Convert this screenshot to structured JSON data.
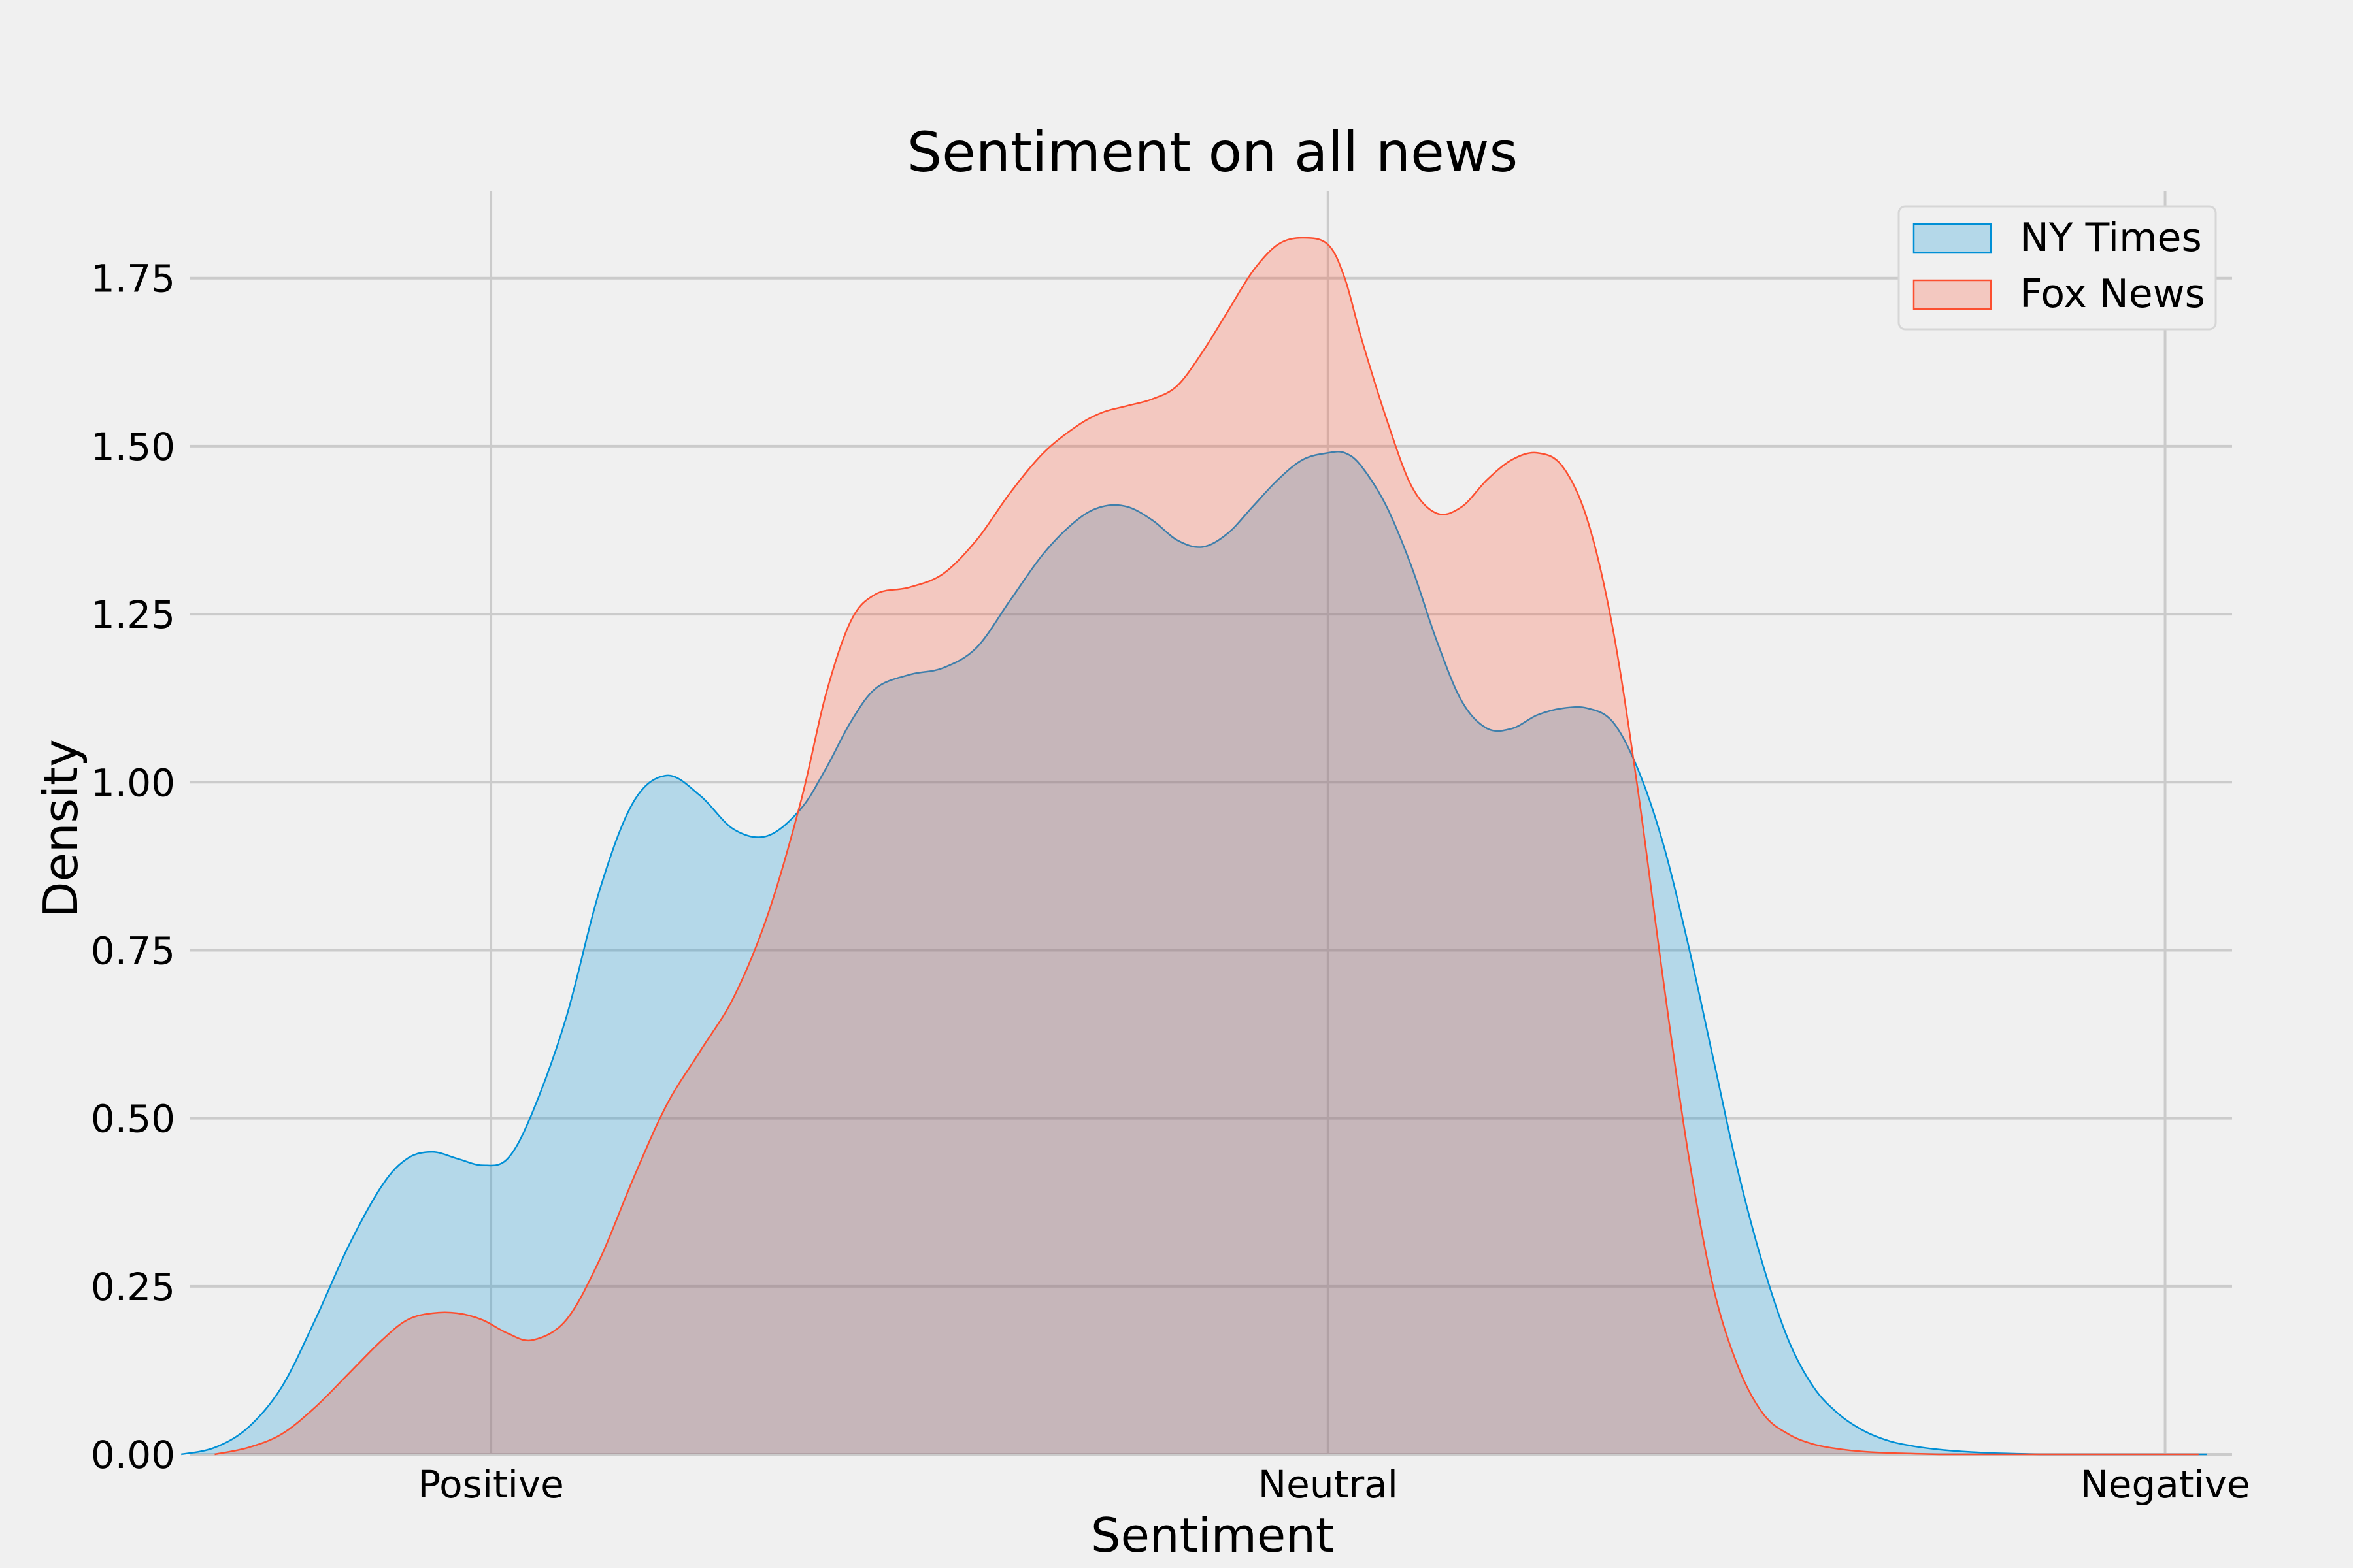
{
  "chart_data": {
    "type": "area",
    "title": "Sentiment on all news",
    "xlabel": "Sentiment",
    "ylabel": "Density",
    "xlim": [
      -1.36,
      1.08
    ],
    "ylim": [
      0,
      1.88
    ],
    "x_ticks": [
      {
        "value": -1,
        "label": "Positive"
      },
      {
        "value": 0,
        "label": "Neutral"
      },
      {
        "value": 1,
        "label": "Negative"
      }
    ],
    "y_ticks": [
      "0.00",
      "0.25",
      "0.50",
      "0.75",
      "1.00",
      "1.25",
      "1.50",
      "1.75"
    ],
    "grid": true,
    "legend_position": "top-right",
    "series": [
      {
        "name": "NY Times",
        "color": "#008fd5",
        "x": [
          -1.37,
          -1.33,
          -1.29,
          -1.25,
          -1.21,
          -1.17,
          -1.13,
          -1.1,
          -1.07,
          -1.04,
          -1.01,
          -0.98,
          -0.95,
          -0.91,
          -0.87,
          -0.83,
          -0.79,
          -0.75,
          -0.71,
          -0.67,
          -0.63,
          -0.6,
          -0.57,
          -0.54,
          -0.5,
          -0.46,
          -0.42,
          -0.38,
          -0.34,
          -0.3,
          -0.27,
          -0.24,
          -0.21,
          -0.18,
          -0.15,
          -0.12,
          -0.09,
          -0.06,
          -0.03,
          0.0,
          0.02,
          0.04,
          0.07,
          0.1,
          0.13,
          0.16,
          0.19,
          0.22,
          0.25,
          0.28,
          0.31,
          0.34,
          0.37,
          0.4,
          0.43,
          0.46,
          0.49,
          0.52,
          0.55,
          0.58,
          0.61,
          0.64,
          0.67,
          0.7,
          0.73,
          0.76,
          0.79,
          0.82,
          0.85,
          0.88,
          0.91,
          0.94,
          0.97,
          1.0,
          1.03,
          1.05
        ],
        "y": [
          0.0,
          0.01,
          0.04,
          0.1,
          0.2,
          0.31,
          0.4,
          0.44,
          0.45,
          0.44,
          0.43,
          0.44,
          0.51,
          0.65,
          0.84,
          0.97,
          1.01,
          0.98,
          0.93,
          0.92,
          0.96,
          1.02,
          1.09,
          1.14,
          1.16,
          1.17,
          1.2,
          1.27,
          1.34,
          1.39,
          1.41,
          1.41,
          1.39,
          1.36,
          1.35,
          1.37,
          1.41,
          1.45,
          1.48,
          1.49,
          1.49,
          1.47,
          1.41,
          1.32,
          1.21,
          1.12,
          1.08,
          1.08,
          1.1,
          1.11,
          1.11,
          1.09,
          1.02,
          0.91,
          0.76,
          0.59,
          0.42,
          0.28,
          0.17,
          0.1,
          0.06,
          0.035,
          0.02,
          0.012,
          0.007,
          0.004,
          0.002,
          0.001,
          0.0,
          0.0,
          0.0,
          0.0,
          0.0,
          0.0,
          0.0,
          0.0
        ]
      },
      {
        "name": "Fox News",
        "color": "#fc4f30",
        "x": [
          -1.33,
          -1.29,
          -1.25,
          -1.21,
          -1.17,
          -1.13,
          -1.1,
          -1.07,
          -1.04,
          -1.01,
          -0.98,
          -0.95,
          -0.91,
          -0.87,
          -0.83,
          -0.79,
          -0.75,
          -0.71,
          -0.67,
          -0.63,
          -0.6,
          -0.57,
          -0.54,
          -0.5,
          -0.46,
          -0.42,
          -0.38,
          -0.34,
          -0.3,
          -0.27,
          -0.24,
          -0.21,
          -0.18,
          -0.15,
          -0.12,
          -0.09,
          -0.06,
          -0.03,
          0.0,
          0.02,
          0.04,
          0.07,
          0.1,
          0.13,
          0.16,
          0.19,
          0.22,
          0.25,
          0.28,
          0.31,
          0.34,
          0.37,
          0.4,
          0.43,
          0.46,
          0.49,
          0.52,
          0.55,
          0.58,
          0.61,
          0.64,
          0.67,
          0.7,
          0.73,
          0.76,
          0.79,
          0.82,
          0.85,
          0.88,
          0.91,
          0.94,
          0.97,
          1.0,
          1.03,
          1.04
        ],
        "y": [
          0.0,
          0.01,
          0.03,
          0.07,
          0.12,
          0.17,
          0.2,
          0.21,
          0.21,
          0.2,
          0.18,
          0.17,
          0.2,
          0.29,
          0.41,
          0.52,
          0.6,
          0.68,
          0.8,
          0.97,
          1.13,
          1.24,
          1.28,
          1.29,
          1.31,
          1.36,
          1.43,
          1.49,
          1.53,
          1.55,
          1.56,
          1.57,
          1.59,
          1.64,
          1.7,
          1.76,
          1.8,
          1.81,
          1.8,
          1.75,
          1.66,
          1.54,
          1.44,
          1.4,
          1.41,
          1.45,
          1.48,
          1.49,
          1.47,
          1.39,
          1.23,
          0.99,
          0.71,
          0.45,
          0.25,
          0.13,
          0.06,
          0.03,
          0.015,
          0.008,
          0.004,
          0.002,
          0.001,
          0.0,
          0.0,
          0.0,
          0.0,
          0.0,
          0.0,
          0.0,
          0.0,
          0.0,
          0.0,
          0.0,
          0.0
        ]
      }
    ]
  }
}
